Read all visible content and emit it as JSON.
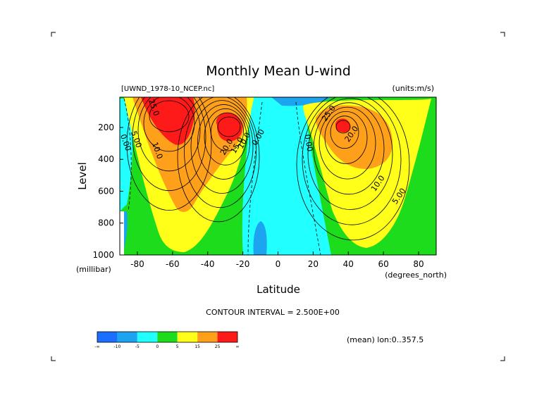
{
  "title": "Monthly Mean U-wind",
  "dataset_label": "[UWND_1978-10_NCEP.nc]",
  "units_label": "(units:m/s)",
  "contour_interval_label": "CONTOUR INTERVAL = 2.500E+00",
  "mean_label": "(mean) lon:0..357.5",
  "colorbar": {
    "colors": [
      "#1a6fff",
      "#1ca4f0",
      "#22ffff",
      "#1cdc1c",
      "#ffff1a",
      "#ffa01a",
      "#ff1a1a"
    ],
    "tick_labels": [
      "-∞",
      "-10",
      "-5",
      "0",
      "5",
      "15",
      "25",
      "∞"
    ]
  },
  "chart_data": {
    "type": "heatmap",
    "title": "Monthly Mean U-wind",
    "xlabel": "Latitude",
    "xunits": "(degrees_north)",
    "ylabel": "Level",
    "yunits": "(millibar)",
    "xlim": [
      -90,
      90
    ],
    "ylim": [
      1000,
      10
    ],
    "y_reversed": true,
    "x_ticks": [
      -80,
      -60,
      -40,
      -20,
      0,
      20,
      40,
      60,
      80
    ],
    "y_ticks": [
      200,
      400,
      600,
      800,
      1000
    ],
    "contour_interval": 2.5,
    "contour_labels": [
      {
        "text": "25.0",
        "lat": -72,
        "p": 80
      },
      {
        "text": "5.00",
        "lat": -82,
        "p": 280
      },
      {
        "text": "0.00",
        "lat": -88,
        "p": 300
      },
      {
        "text": "10.0",
        "lat": -70,
        "p": 350
      },
      {
        "text": "20.0",
        "lat": -28,
        "p": 330
      },
      {
        "text": "15.0",
        "lat": -22,
        "p": 320
      },
      {
        "text": "10.0",
        "lat": -18,
        "p": 290
      },
      {
        "text": "0.00",
        "lat": -10,
        "p": 270
      },
      {
        "text": "0.00",
        "lat": 16,
        "p": 300
      },
      {
        "text": "25.0",
        "lat": 30,
        "p": 120
      },
      {
        "text": "20.0",
        "lat": 43,
        "p": 250
      },
      {
        "text": "10.0",
        "lat": 58,
        "p": 560
      },
      {
        "text": "5.00",
        "lat": 70,
        "p": 640
      }
    ],
    "jets": [
      {
        "name": "southern_jet",
        "lat": -32,
        "p": 200,
        "max": 30
      },
      {
        "name": "southern_polar_jet",
        "lat": -60,
        "p": 100,
        "max": 30
      },
      {
        "name": "northern_jet",
        "lat": 37,
        "p": 190,
        "max": 27
      }
    ]
  }
}
